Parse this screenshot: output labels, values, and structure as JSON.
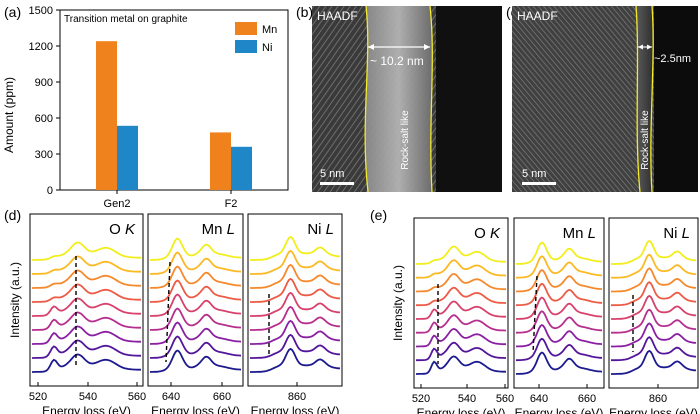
{
  "panels": {
    "a": "(a)",
    "b": "(b)",
    "c": "(c)",
    "d": "(d)",
    "e": "(e)"
  },
  "chart_data": [
    {
      "panel": "a",
      "type": "bar",
      "title": "Transition metal on graphite",
      "categories": [
        "Gen2",
        "F2"
      ],
      "series": [
        {
          "name": "Mn",
          "color": "#f0821e",
          "values": [
            1240,
            480
          ]
        },
        {
          "name": "Ni",
          "color": "#1f87c8",
          "values": [
            535,
            360
          ]
        }
      ],
      "ylabel": "Amount (ppm)",
      "ylim": [
        0,
        1500
      ],
      "yticks": [
        "0",
        "300",
        "600",
        "900",
        "1200",
        "1500"
      ],
      "legend": "top-right"
    },
    {
      "panel": "d",
      "type": "line",
      "ylabel": "Intensity (a.u.)",
      "xlabel": "Energy loss (eV)",
      "subplots": [
        {
          "label": "O",
          "label_italic": "K",
          "xticks": [
            "520",
            "540",
            "560"
          ],
          "marker_tick": "540"
        },
        {
          "label": "Mn",
          "label_italic": "L",
          "xticks": [
            "640",
            "660"
          ],
          "marker_tick": "640"
        },
        {
          "label": "Ni",
          "label_italic": "L",
          "xticks": [
            "860"
          ],
          "marker_tick": "860"
        }
      ]
    },
    {
      "panel": "e",
      "type": "line",
      "ylabel": "Intensity (a.u.)",
      "xlabel": "Energy loss (eV)",
      "subplots": [
        {
          "label": "O",
          "label_italic": "K",
          "xticks": [
            "520",
            "540",
            "560"
          ],
          "marker_tick": "540"
        },
        {
          "label": "Mn",
          "label_italic": "L",
          "xticks": [
            "640",
            "660"
          ],
          "marker_tick": "640"
        },
        {
          "label": "Ni",
          "label_italic": "L",
          "xticks": [
            "860"
          ],
          "marker_tick": "860"
        }
      ]
    }
  ],
  "images": {
    "b": {
      "mode": "HAADF",
      "measure": "~ 10.2 nm",
      "region": "Rock-salt like",
      "scalebar": "5 nm"
    },
    "c": {
      "mode": "HAADF",
      "measure": "~2.5nm",
      "region": "Rock-salt like",
      "scalebar": "5 nm"
    }
  },
  "spectrum_colors": [
    "#1c1a8e",
    "#53169a",
    "#8a1fa2",
    "#b62f8f",
    "#d7416c",
    "#ec5b45",
    "#f6892c",
    "#fbb924",
    "#f2ee1d"
  ]
}
